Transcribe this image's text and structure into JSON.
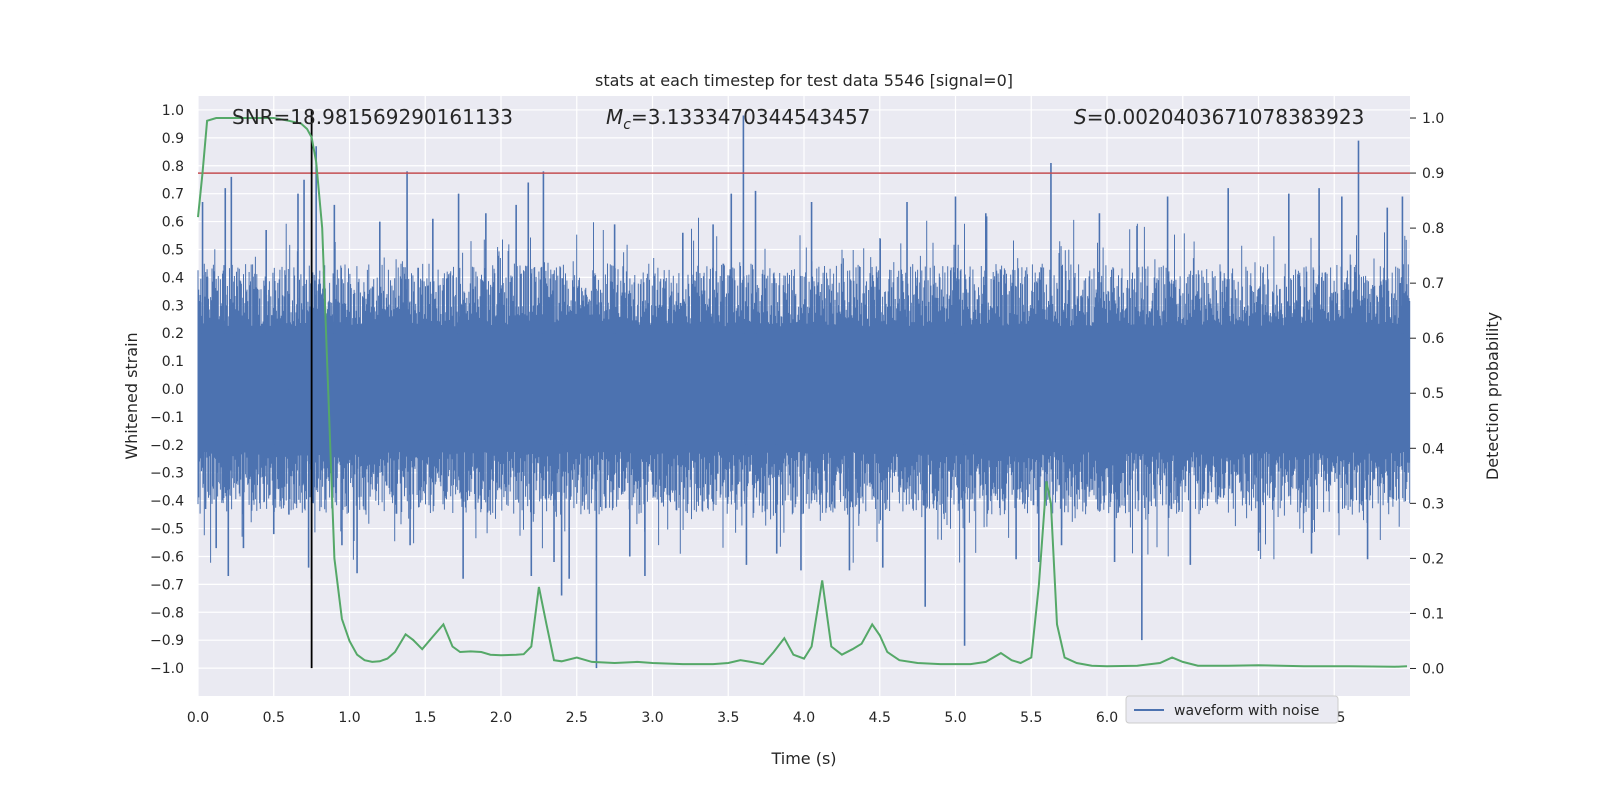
{
  "chart_data": {
    "type": "line",
    "title": "stats at each timestep for test data 5546 [signal=0]",
    "xlabel": "Time (s)",
    "ylabel": "Whitened strain",
    "ylabel_right": "Detection probability",
    "xlim": [
      0,
      8
    ],
    "ylim": [
      -1.1,
      1.05
    ],
    "ylim_right": [
      -0.05,
      1.04
    ],
    "x_ticks": [
      0.0,
      0.5,
      1.0,
      1.5,
      2.0,
      2.5,
      3.0,
      3.5,
      4.0,
      4.5,
      5.0,
      5.5,
      6.0,
      6.5,
      7.0,
      7.5
    ],
    "x_tick_labels": [
      "0.0",
      "0.5",
      "1.0",
      "1.5",
      "2.0",
      "2.5",
      "3.0",
      "3.5",
      "4.0",
      "4.5",
      "5.0",
      "5.5",
      "6.0",
      "6.5",
      "7.0",
      "7.5"
    ],
    "y_ticks": [
      1.0,
      0.9,
      0.8,
      0.7,
      0.6,
      0.5,
      0.4,
      0.3,
      0.2,
      0.1,
      0.0,
      -0.1,
      -0.2,
      -0.3,
      -0.4,
      -0.5,
      -0.6,
      -0.7,
      -0.8,
      -0.9,
      -1.0
    ],
    "y_tick_labels": [
      "1.0",
      "0.9",
      "0.8",
      "0.7",
      "0.6",
      "0.5",
      "0.4",
      "0.3",
      "0.2",
      "0.1",
      "0.0",
      "−0.1",
      "−0.2",
      "−0.3",
      "−0.4",
      "−0.5",
      "−0.6",
      "−0.7",
      "−0.8",
      "−0.9",
      "−1.0"
    ],
    "y_ticks_right": [
      1.0,
      0.9,
      0.8,
      0.7,
      0.6,
      0.5,
      0.4,
      0.3,
      0.2,
      0.1,
      0.0
    ],
    "y_tick_labels_right": [
      "1.0",
      "0.9",
      "0.8",
      "0.7",
      "0.6",
      "0.5",
      "0.4",
      "0.3",
      "0.2",
      "0.1",
      "0.0"
    ],
    "grid": true,
    "annotations": {
      "snr": "SNR=18.981569290161133",
      "mc_symbol": "M",
      "mc_subscript": "c",
      "mc_value": "=3.1333470344543457",
      "s_symbol": "S",
      "s_value": "=0.0020403671078383923"
    },
    "threshold": {
      "value_right": 0.9,
      "color": "#c44e52"
    },
    "marker_line": {
      "x": 0.75,
      "y_from": -1.0,
      "y_to": 1.0,
      "color": "#000000"
    },
    "legend": {
      "placement": "lower-right",
      "entries": [
        {
          "name": "waveform with noise",
          "color": "#4c72b0"
        }
      ]
    },
    "series": [
      {
        "name": "waveform with noise",
        "color": "#4c72b0",
        "axis": "left",
        "kind": "noise-band",
        "band": [
          -0.2,
          0.2
        ],
        "typical_peak": [
          0.3,
          0.45
        ],
        "notable_peaks": [
          {
            "x": 0.03,
            "y": 0.67
          },
          {
            "x": 0.05,
            "y": -0.43
          },
          {
            "x": 0.12,
            "y": -0.57
          },
          {
            "x": 0.18,
            "y": 0.72
          },
          {
            "x": 0.2,
            "y": -0.67
          },
          {
            "x": 0.22,
            "y": 0.76
          },
          {
            "x": 0.3,
            "y": -0.57
          },
          {
            "x": 0.45,
            "y": 0.57
          },
          {
            "x": 0.5,
            "y": -0.52
          },
          {
            "x": 0.6,
            "y": -0.45
          },
          {
            "x": 0.66,
            "y": 0.7
          },
          {
            "x": 0.7,
            "y": 0.75
          },
          {
            "x": 0.73,
            "y": -0.64
          },
          {
            "x": 0.75,
            "y": -0.68
          },
          {
            "x": 0.78,
            "y": 0.87
          },
          {
            "x": 0.9,
            "y": 0.66
          },
          {
            "x": 0.95,
            "y": -0.56
          },
          {
            "x": 1.05,
            "y": -0.66
          },
          {
            "x": 1.2,
            "y": 0.6
          },
          {
            "x": 1.38,
            "y": 0.78
          },
          {
            "x": 1.4,
            "y": -0.56
          },
          {
            "x": 1.55,
            "y": 0.61
          },
          {
            "x": 1.72,
            "y": 0.7
          },
          {
            "x": 1.75,
            "y": -0.68
          },
          {
            "x": 1.9,
            "y": 0.63
          },
          {
            "x": 2.1,
            "y": 0.66
          },
          {
            "x": 2.18,
            "y": 0.74
          },
          {
            "x": 2.2,
            "y": -0.67
          },
          {
            "x": 2.28,
            "y": 0.78
          },
          {
            "x": 2.35,
            "y": -0.62
          },
          {
            "x": 2.4,
            "y": -0.74
          },
          {
            "x": 2.45,
            "y": -0.68
          },
          {
            "x": 2.63,
            "y": -1.0
          },
          {
            "x": 2.75,
            "y": 0.59
          },
          {
            "x": 2.85,
            "y": -0.6
          },
          {
            "x": 2.95,
            "y": -0.67
          },
          {
            "x": 3.2,
            "y": 0.56
          },
          {
            "x": 3.4,
            "y": 0.59
          },
          {
            "x": 3.52,
            "y": 0.7
          },
          {
            "x": 3.6,
            "y": 0.98
          },
          {
            "x": 3.62,
            "y": -0.63
          },
          {
            "x": 3.68,
            "y": 0.71
          },
          {
            "x": 3.82,
            "y": -0.59
          },
          {
            "x": 3.98,
            "y": -0.65
          },
          {
            "x": 4.05,
            "y": 0.67
          },
          {
            "x": 4.3,
            "y": -0.65
          },
          {
            "x": 4.52,
            "y": -0.64
          },
          {
            "x": 4.68,
            "y": 0.67
          },
          {
            "x": 4.8,
            "y": -0.78
          },
          {
            "x": 5.0,
            "y": 0.69
          },
          {
            "x": 5.06,
            "y": -0.92
          },
          {
            "x": 5.2,
            "y": 0.63
          },
          {
            "x": 5.4,
            "y": -0.61
          },
          {
            "x": 5.55,
            "y": -0.62
          },
          {
            "x": 5.63,
            "y": 0.81
          },
          {
            "x": 5.7,
            "y": -0.56
          },
          {
            "x": 5.95,
            "y": 0.63
          },
          {
            "x": 6.05,
            "y": -0.62
          },
          {
            "x": 6.23,
            "y": -0.9
          },
          {
            "x": 6.4,
            "y": 0.69
          },
          {
            "x": 6.55,
            "y": -0.63
          },
          {
            "x": 6.8,
            "y": 0.72
          },
          {
            "x": 7.0,
            "y": -0.58
          },
          {
            "x": 7.2,
            "y": 0.7
          },
          {
            "x": 7.35,
            "y": -0.59
          },
          {
            "x": 7.4,
            "y": 0.72
          },
          {
            "x": 7.55,
            "y": 0.69
          },
          {
            "x": 7.66,
            "y": 0.89
          },
          {
            "x": 7.72,
            "y": -0.61
          },
          {
            "x": 7.85,
            "y": 0.65
          },
          {
            "x": 7.95,
            "y": 0.69
          }
        ]
      },
      {
        "color": "#55a868",
        "axis": "right",
        "kind": "line",
        "points": [
          [
            0.0,
            0.82
          ],
          [
            0.03,
            0.9
          ],
          [
            0.06,
            0.995
          ],
          [
            0.12,
            1.0
          ],
          [
            0.25,
            1.0
          ],
          [
            0.5,
            1.0
          ],
          [
            0.6,
            0.995
          ],
          [
            0.68,
            0.99
          ],
          [
            0.72,
            0.98
          ],
          [
            0.75,
            0.965
          ],
          [
            0.78,
            0.92
          ],
          [
            0.82,
            0.8
          ],
          [
            0.86,
            0.5
          ],
          [
            0.9,
            0.2
          ],
          [
            0.95,
            0.09
          ],
          [
            1.0,
            0.05
          ],
          [
            1.05,
            0.025
          ],
          [
            1.1,
            0.015
          ],
          [
            1.15,
            0.012
          ],
          [
            1.2,
            0.013
          ],
          [
            1.25,
            0.018
          ],
          [
            1.3,
            0.03
          ],
          [
            1.37,
            0.062
          ],
          [
            1.42,
            0.052
          ],
          [
            1.48,
            0.035
          ],
          [
            1.55,
            0.058
          ],
          [
            1.62,
            0.08
          ],
          [
            1.68,
            0.04
          ],
          [
            1.73,
            0.03
          ],
          [
            1.8,
            0.031
          ],
          [
            1.87,
            0.03
          ],
          [
            1.93,
            0.025
          ],
          [
            2.0,
            0.024
          ],
          [
            2.1,
            0.025
          ],
          [
            2.15,
            0.026
          ],
          [
            2.2,
            0.04
          ],
          [
            2.25,
            0.148
          ],
          [
            2.3,
            0.08
          ],
          [
            2.35,
            0.015
          ],
          [
            2.4,
            0.013
          ],
          [
            2.5,
            0.02
          ],
          [
            2.6,
            0.012
          ],
          [
            2.75,
            0.01
          ],
          [
            2.9,
            0.012
          ],
          [
            3.0,
            0.01
          ],
          [
            3.2,
            0.008
          ],
          [
            3.4,
            0.008
          ],
          [
            3.5,
            0.01
          ],
          [
            3.58,
            0.015
          ],
          [
            3.65,
            0.012
          ],
          [
            3.73,
            0.008
          ],
          [
            3.8,
            0.03
          ],
          [
            3.87,
            0.055
          ],
          [
            3.93,
            0.025
          ],
          [
            4.0,
            0.018
          ],
          [
            4.05,
            0.04
          ],
          [
            4.12,
            0.16
          ],
          [
            4.18,
            0.04
          ],
          [
            4.25,
            0.025
          ],
          [
            4.32,
            0.035
          ],
          [
            4.38,
            0.045
          ],
          [
            4.45,
            0.08
          ],
          [
            4.5,
            0.06
          ],
          [
            4.55,
            0.03
          ],
          [
            4.63,
            0.015
          ],
          [
            4.75,
            0.01
          ],
          [
            4.9,
            0.008
          ],
          [
            5.0,
            0.008
          ],
          [
            5.1,
            0.008
          ],
          [
            5.2,
            0.012
          ],
          [
            5.3,
            0.028
          ],
          [
            5.37,
            0.015
          ],
          [
            5.43,
            0.01
          ],
          [
            5.5,
            0.02
          ],
          [
            5.55,
            0.15
          ],
          [
            5.6,
            0.34
          ],
          [
            5.63,
            0.3
          ],
          [
            5.67,
            0.08
          ],
          [
            5.72,
            0.02
          ],
          [
            5.8,
            0.01
          ],
          [
            5.9,
            0.005
          ],
          [
            6.0,
            0.004
          ],
          [
            6.2,
            0.005
          ],
          [
            6.35,
            0.01
          ],
          [
            6.43,
            0.02
          ],
          [
            6.5,
            0.012
          ],
          [
            6.6,
            0.005
          ],
          [
            6.8,
            0.005
          ],
          [
            7.0,
            0.006
          ],
          [
            7.3,
            0.004
          ],
          [
            7.6,
            0.004
          ],
          [
            7.9,
            0.003
          ],
          [
            7.98,
            0.004
          ]
        ]
      }
    ]
  }
}
